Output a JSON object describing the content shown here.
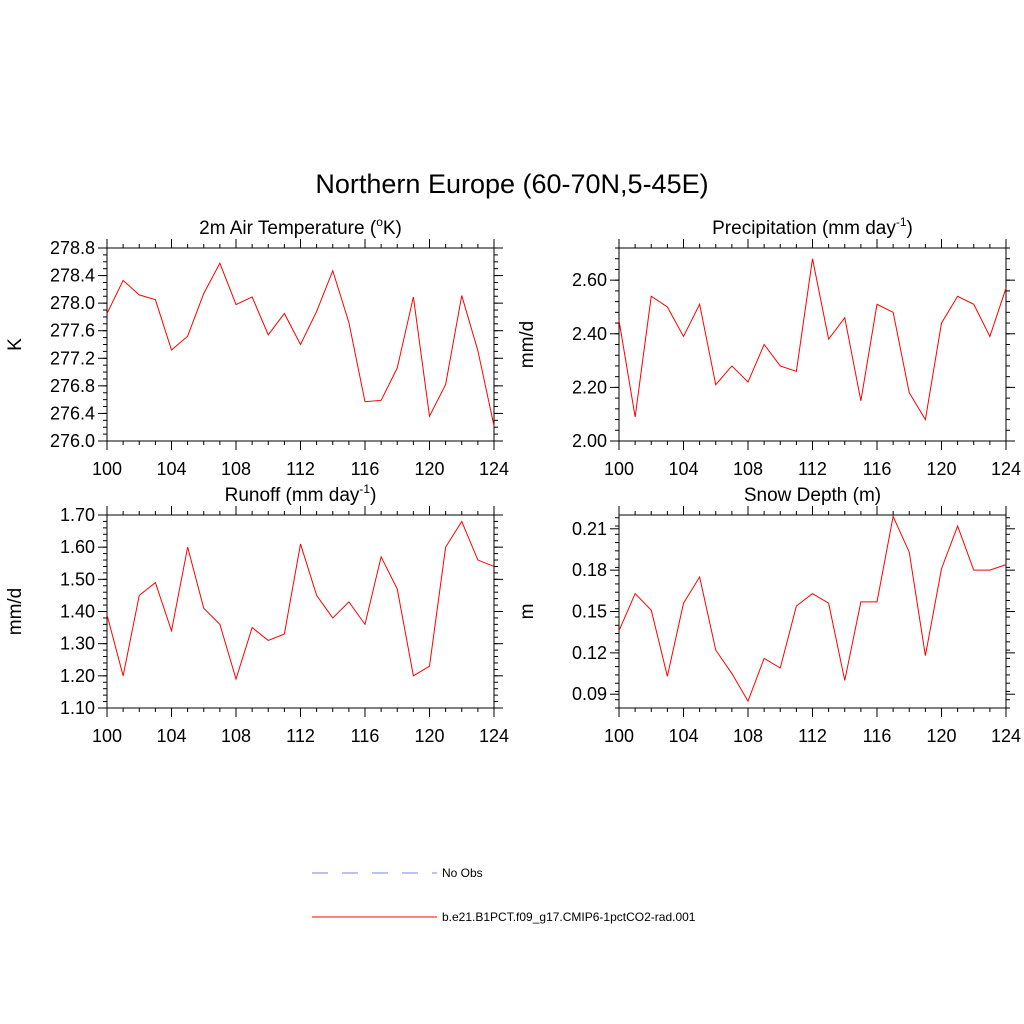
{
  "figure": {
    "title": "Northern Europe (60-70N,5-45E)"
  },
  "legend": {
    "items": [
      {
        "label": "No Obs",
        "color": "#9999ff",
        "style": "dashed"
      },
      {
        "label": "b.e21.B1PCT.f09_g17.CMIP6-1pctCO2-rad.001",
        "color": "#ff0000",
        "style": "solid"
      }
    ]
  },
  "colors": {
    "series": "#ff0000",
    "obs": "#9999ff",
    "axis": "#000000"
  },
  "chart_data": [
    {
      "type": "line",
      "title": "2m Air Temperature (",
      "title_sup": "o",
      "title_tail": "K)",
      "ylabel": "K",
      "xlim": [
        100,
        124
      ],
      "ylim": [
        276.0,
        278.8
      ],
      "xticks": [
        100,
        104,
        108,
        112,
        116,
        120,
        124
      ],
      "xtick_labels": [
        "100",
        "104",
        "108",
        "112",
        "116",
        "120",
        "124"
      ],
      "yticks": [
        276.0,
        276.4,
        276.8,
        277.2,
        277.6,
        278.0,
        278.4,
        278.8
      ],
      "ytick_labels": [
        "276.0",
        "276.4",
        "276.8",
        "277.2",
        "277.6",
        "278.0",
        "278.4",
        "278.8"
      ],
      "yminor_step": 0.1,
      "x": [
        100,
        101,
        102,
        103,
        104,
        105,
        106,
        107,
        108,
        109,
        110,
        111,
        112,
        113,
        114,
        115,
        116,
        117,
        118,
        119,
        120,
        121,
        122,
        123,
        124
      ],
      "series": [
        {
          "values": [
            277.85,
            278.33,
            278.12,
            278.05,
            277.32,
            277.52,
            278.14,
            278.58,
            277.98,
            278.09,
            277.54,
            277.85,
            277.4,
            277.88,
            278.47,
            277.72,
            276.57,
            276.59,
            277.06,
            278.09,
            276.36,
            276.82,
            278.11,
            277.31,
            276.22
          ]
        }
      ]
    },
    {
      "type": "line",
      "title": "Precipitation (mm day",
      "title_sup": "-1",
      "title_tail": ")",
      "ylabel": "mm/d",
      "xlim": [
        100,
        124
      ],
      "ylim": [
        2.0,
        2.72
      ],
      "xticks": [
        100,
        104,
        108,
        112,
        116,
        120,
        124
      ],
      "xtick_labels": [
        "100",
        "104",
        "108",
        "112",
        "116",
        "120",
        "124"
      ],
      "yticks": [
        2.0,
        2.2,
        2.4,
        2.6
      ],
      "ytick_labels": [
        "2.00",
        "2.20",
        "2.40",
        "2.60"
      ],
      "yminor_step": 0.04,
      "x": [
        100,
        101,
        102,
        103,
        104,
        105,
        106,
        107,
        108,
        109,
        110,
        111,
        112,
        113,
        114,
        115,
        116,
        117,
        118,
        119,
        120,
        121,
        122,
        123,
        124
      ],
      "series": [
        {
          "values": [
            2.45,
            2.09,
            2.54,
            2.5,
            2.39,
            2.51,
            2.21,
            2.28,
            2.22,
            2.36,
            2.28,
            2.26,
            2.68,
            2.38,
            2.46,
            2.15,
            2.51,
            2.48,
            2.18,
            2.08,
            2.44,
            2.54,
            2.51,
            2.39,
            2.57
          ]
        }
      ]
    },
    {
      "type": "line",
      "title": "Runoff (mm day",
      "title_sup": "-1",
      "title_tail": ")",
      "ylabel": "mm/d",
      "xlim": [
        100,
        124
      ],
      "ylim": [
        1.1,
        1.7
      ],
      "xticks": [
        100,
        104,
        108,
        112,
        116,
        120,
        124
      ],
      "xtick_labels": [
        "100",
        "104",
        "108",
        "112",
        "116",
        "120",
        "124"
      ],
      "yticks": [
        1.1,
        1.2,
        1.3,
        1.4,
        1.5,
        1.6,
        1.7
      ],
      "ytick_labels": [
        "1.10",
        "1.20",
        "1.30",
        "1.40",
        "1.50",
        "1.60",
        "1.70"
      ],
      "yminor_step": 0.02,
      "x": [
        100,
        101,
        102,
        103,
        104,
        105,
        106,
        107,
        108,
        109,
        110,
        111,
        112,
        113,
        114,
        115,
        116,
        117,
        118,
        119,
        120,
        121,
        122,
        123,
        124
      ],
      "series": [
        {
          "values": [
            1.39,
            1.2,
            1.45,
            1.49,
            1.34,
            1.6,
            1.41,
            1.36,
            1.19,
            1.35,
            1.31,
            1.33,
            1.61,
            1.45,
            1.38,
            1.43,
            1.36,
            1.57,
            1.47,
            1.2,
            1.23,
            1.6,
            1.68,
            1.56,
            1.54
          ]
        }
      ]
    },
    {
      "type": "line",
      "title": "Snow Depth (m)",
      "title_sup": "",
      "title_tail": "",
      "ylabel": "m",
      "xlim": [
        100,
        124
      ],
      "ylim": [
        0.08,
        0.22
      ],
      "xticks": [
        100,
        104,
        108,
        112,
        116,
        120,
        124
      ],
      "xtick_labels": [
        "100",
        "104",
        "108",
        "112",
        "116",
        "120",
        "124"
      ],
      "yticks": [
        0.09,
        0.12,
        0.15,
        0.18,
        0.21
      ],
      "ytick_labels": [
        "0.09",
        "0.12",
        "0.15",
        "0.18",
        "0.21"
      ],
      "yminor_step": 0.006,
      "x": [
        100,
        101,
        102,
        103,
        104,
        105,
        106,
        107,
        108,
        109,
        110,
        111,
        112,
        113,
        114,
        115,
        116,
        117,
        118,
        119,
        120,
        121,
        122,
        123,
        124
      ],
      "series": [
        {
          "values": [
            0.136,
            0.163,
            0.151,
            0.103,
            0.156,
            0.175,
            0.122,
            0.105,
            0.085,
            0.116,
            0.109,
            0.154,
            0.163,
            0.156,
            0.1,
            0.157,
            0.157,
            0.219,
            0.193,
            0.118,
            0.181,
            0.212,
            0.18,
            0.18,
            0.184
          ]
        }
      ]
    }
  ]
}
